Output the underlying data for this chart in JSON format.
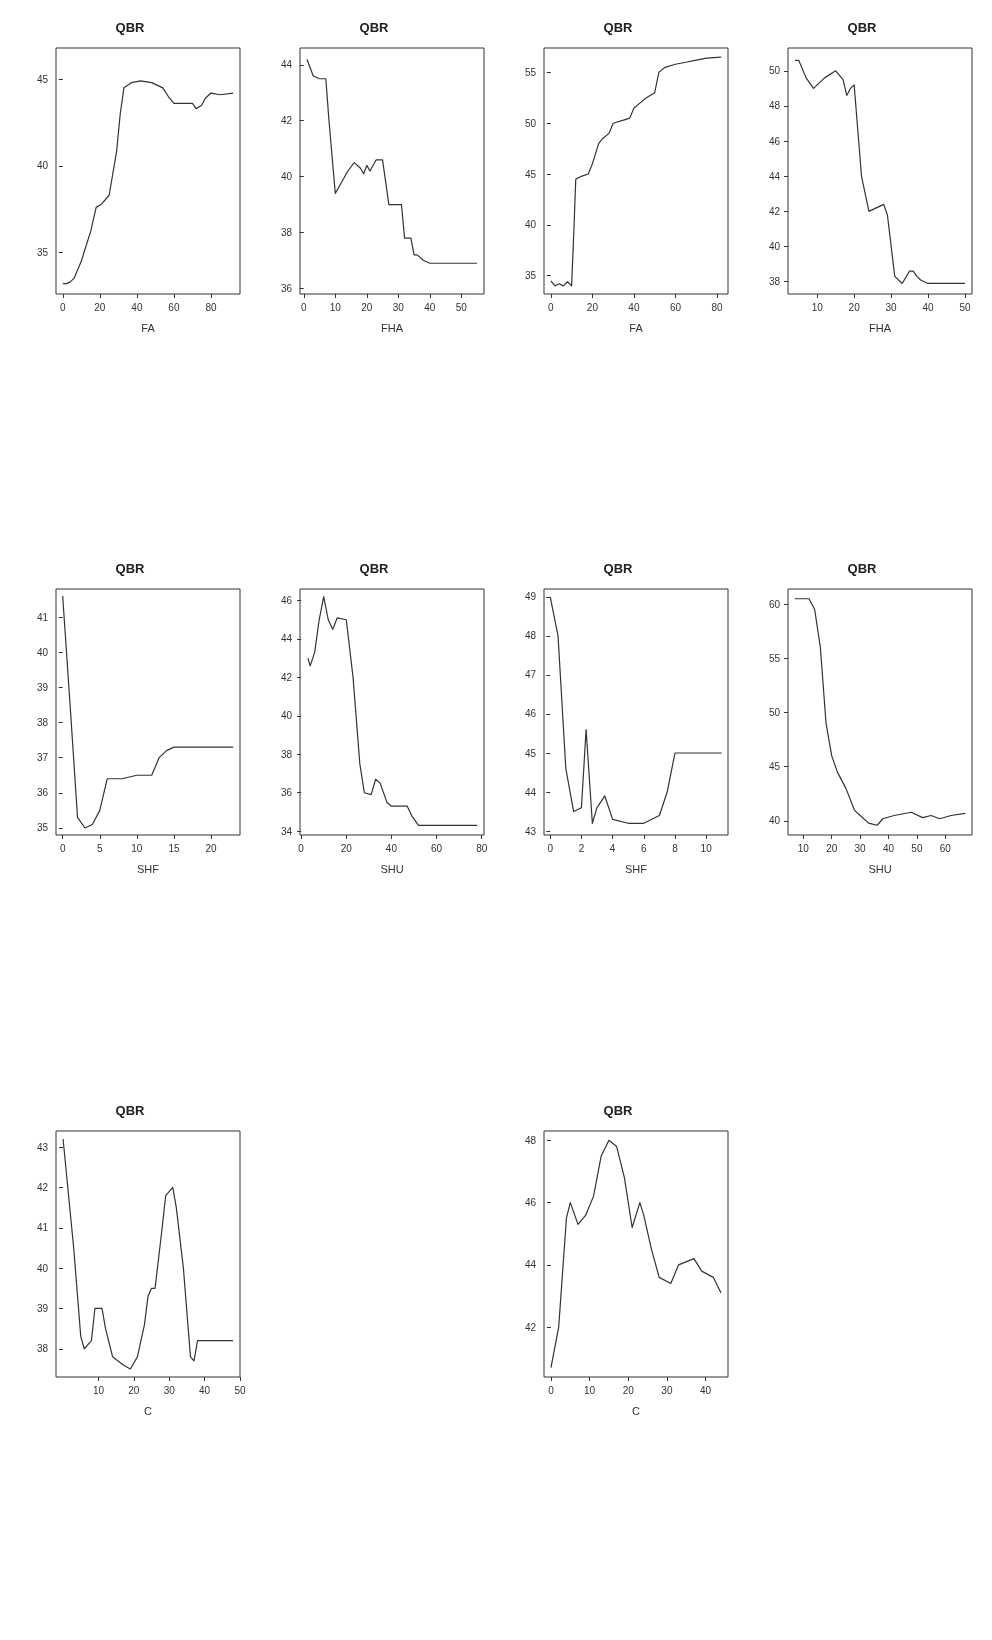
{
  "chart_data": [
    {
      "type": "line",
      "title": "QBR",
      "xlabel": "FA",
      "color": "#333333",
      "xlim": [
        -3.7,
        95.7
      ],
      "xticks": [
        0,
        20,
        40,
        60,
        80
      ],
      "ylim": [
        32.6,
        46.8
      ],
      "yticks": [
        35,
        40,
        45
      ],
      "x": [
        0,
        2,
        4,
        6,
        8,
        10,
        12,
        15,
        18,
        21,
        25,
        29,
        31,
        33,
        37,
        42,
        48,
        54,
        57,
        60,
        65,
        70,
        72,
        75,
        77,
        80,
        85,
        92
      ],
      "values": [
        33.2,
        33.2,
        33.3,
        33.5,
        34,
        34.5,
        35.2,
        36.2,
        37.6,
        37.8,
        38.3,
        40.8,
        43,
        44.5,
        44.8,
        44.9,
        44.8,
        44.5,
        44,
        43.6,
        43.6,
        43.6,
        43.3,
        43.5,
        43.9,
        44.2,
        44.1,
        44.2
      ]
    },
    {
      "type": "line",
      "title": "QBR",
      "xlabel": "FHA",
      "color": "#333333",
      "xlim": [
        -1.2,
        57.2
      ],
      "xticks": [
        0,
        10,
        20,
        30,
        40,
        50
      ],
      "ylim": [
        35.8,
        44.6
      ],
      "yticks": [
        36,
        38,
        40,
        42,
        44
      ],
      "x": [
        1,
        3,
        5,
        7,
        8,
        10,
        12,
        14,
        16,
        18,
        19,
        20,
        21,
        23,
        25,
        26,
        27,
        31,
        32,
        34,
        35,
        36,
        38,
        40,
        45,
        55
      ],
      "values": [
        44.2,
        43.6,
        43.5,
        43.5,
        42,
        39.4,
        39.8,
        40.2,
        40.5,
        40.3,
        40.1,
        40.4,
        40.2,
        40.6,
        40.6,
        39.8,
        39,
        39,
        37.8,
        37.8,
        37.2,
        37.2,
        37,
        36.9,
        36.9,
        36.9
      ]
    },
    {
      "type": "line",
      "title": "QBR",
      "xlabel": "FA",
      "color": "#333333",
      "xlim": [
        -3.3,
        85.3
      ],
      "xticks": [
        0,
        20,
        40,
        60,
        80
      ],
      "ylim": [
        33.2,
        57.4
      ],
      "yticks": [
        35,
        40,
        45,
        50,
        55
      ],
      "x": [
        0,
        2,
        4,
        6,
        8,
        10,
        11,
        12,
        15,
        18,
        20,
        23,
        25,
        28,
        30,
        35,
        38,
        40,
        43,
        46,
        50,
        52,
        55,
        60,
        65,
        70,
        75,
        82
      ],
      "values": [
        34.5,
        34,
        34.2,
        34,
        34.4,
        34,
        39,
        44.5,
        44.8,
        45,
        46,
        48,
        48.5,
        49,
        50,
        50.3,
        50.5,
        51.5,
        52,
        52.5,
        53,
        55,
        55.5,
        55.8,
        56,
        56.2,
        56.4,
        56.5
      ]
    },
    {
      "type": "line",
      "title": "QBR",
      "xlabel": "FHA",
      "color": "#333333",
      "xlim": [
        2.1,
        51.9
      ],
      "xticks": [
        10,
        20,
        30,
        40,
        50
      ],
      "ylim": [
        37.3,
        51.3
      ],
      "yticks": [
        38,
        40,
        42,
        44,
        46,
        48,
        50
      ],
      "x": [
        4,
        5,
        7,
        9,
        12,
        15,
        17,
        18,
        19,
        20,
        22,
        24,
        26,
        28,
        29,
        31,
        33,
        35,
        36,
        37,
        38,
        40,
        45,
        50
      ],
      "values": [
        50.6,
        50.6,
        49.6,
        49,
        49.6,
        50,
        49.5,
        48.6,
        49,
        49.2,
        44,
        42,
        42.2,
        42.4,
        41.8,
        38.3,
        37.9,
        38.6,
        38.6,
        38.3,
        38.1,
        37.9,
        37.9,
        37.9
      ]
    },
    {
      "type": "line",
      "title": "QBR",
      "xlabel": "SHF",
      "color": "#333333",
      "xlim": [
        -0.9,
        23.9
      ],
      "xticks": [
        0,
        5,
        10,
        15,
        20
      ],
      "ylim": [
        34.8,
        41.8
      ],
      "yticks": [
        35,
        36,
        37,
        38,
        39,
        40,
        41
      ],
      "x": [
        0,
        1,
        2,
        3,
        4,
        5,
        6,
        8,
        10,
        12,
        13,
        14,
        15,
        16,
        18,
        20,
        23
      ],
      "values": [
        41.6,
        38.5,
        35.3,
        35,
        35.1,
        35.5,
        36.4,
        36.4,
        36.5,
        36.5,
        37,
        37.2,
        37.3,
        37.3,
        37.3,
        37.3,
        37.3
      ]
    },
    {
      "type": "line",
      "title": "QBR",
      "xlabel": "SHU",
      "color": "#333333",
      "xlim": [
        -0.5,
        81
      ],
      "xticks": [
        0,
        20,
        40,
        60,
        80
      ],
      "ylim": [
        33.8,
        46.6
      ],
      "yticks": [
        34,
        36,
        38,
        40,
        42,
        44,
        46
      ],
      "x": [
        3,
        4,
        6,
        8,
        10,
        12,
        14,
        16,
        20,
        23,
        26,
        28,
        31,
        33,
        35,
        38,
        40,
        47,
        49,
        52,
        60,
        70,
        78
      ],
      "values": [
        43,
        42.6,
        43.3,
        45,
        46.2,
        45,
        44.5,
        45.1,
        45,
        42,
        37.5,
        36,
        35.9,
        36.7,
        36.5,
        35.5,
        35.3,
        35.3,
        34.8,
        34.3,
        34.3,
        34.3,
        34.3
      ]
    },
    {
      "type": "line",
      "title": "QBR",
      "xlabel": "SHF",
      "color": "#333333",
      "xlim": [
        -0.4,
        11.4
      ],
      "xticks": [
        0,
        2,
        4,
        6,
        8,
        10
      ],
      "ylim": [
        42.9,
        49.2
      ],
      "yticks": [
        43,
        44,
        45,
        46,
        47,
        48,
        49
      ],
      "x": [
        0,
        0.5,
        1,
        1.5,
        2,
        2.3,
        2.7,
        3,
        3.5,
        4,
        5,
        6,
        7,
        7.5,
        8,
        9,
        10,
        11
      ],
      "values": [
        49,
        48,
        44.6,
        43.5,
        43.6,
        45.6,
        43.2,
        43.6,
        43.9,
        43.3,
        43.2,
        43.2,
        43.4,
        44,
        45,
        45,
        45,
        45
      ]
    },
    {
      "type": "line",
      "title": "QBR",
      "xlabel": "SHU",
      "color": "#333333",
      "xlim": [
        4.6,
        69.4
      ],
      "xticks": [
        10,
        20,
        30,
        40,
        50,
        60
      ],
      "ylim": [
        38.7,
        61.4
      ],
      "yticks": [
        40,
        45,
        50,
        55,
        60
      ],
      "x": [
        7,
        12,
        14,
        16,
        18,
        20,
        22,
        25,
        28,
        30,
        33,
        36,
        38,
        42,
        48,
        52,
        55,
        58,
        62,
        67
      ],
      "values": [
        60.5,
        60.5,
        59.5,
        56,
        49,
        46,
        44.5,
        43,
        41,
        40.5,
        39.8,
        39.6,
        40.2,
        40.5,
        40.8,
        40.3,
        40.5,
        40.2,
        40.5,
        40.7
      ]
    },
    {
      "type": "line",
      "title": "QBR",
      "xlabel": "C",
      "color": "#333333",
      "xlim": [
        -2,
        50
      ],
      "xticks": [
        10,
        20,
        30,
        40,
        50
      ],
      "ylim": [
        37.3,
        43.4
      ],
      "yticks": [
        38,
        39,
        40,
        41,
        42,
        43
      ],
      "x": [
        0,
        3,
        5,
        6,
        8,
        9,
        11,
        12,
        14,
        17,
        19,
        21,
        23,
        24,
        25,
        26,
        28,
        29,
        31,
        32,
        34,
        36,
        37,
        38,
        48
      ],
      "values": [
        43.2,
        40.5,
        38.3,
        38,
        38.2,
        39,
        39,
        38.5,
        37.8,
        37.6,
        37.5,
        37.8,
        38.6,
        39.3,
        39.5,
        39.5,
        41,
        41.8,
        42,
        41.5,
        40,
        37.8,
        37.7,
        38.2,
        38.2
      ]
    },
    {
      "type": "line",
      "title": "QBR",
      "xlabel": "C",
      "color": "#333333",
      "xlim": [
        -1.8,
        45.8
      ],
      "xticks": [
        0,
        10,
        20,
        30,
        40
      ],
      "ylim": [
        40.4,
        48.3
      ],
      "yticks": [
        42,
        44,
        46,
        48
      ],
      "x": [
        0,
        2,
        4,
        5,
        7,
        9,
        11,
        13,
        15,
        17,
        19,
        21,
        23,
        24,
        26,
        28,
        31,
        33,
        37,
        39,
        42,
        44
      ],
      "values": [
        40.7,
        42,
        45.5,
        46,
        45.3,
        45.6,
        46.2,
        47.5,
        48,
        47.8,
        46.8,
        45.2,
        46,
        45.6,
        44.5,
        43.6,
        43.4,
        44,
        44.2,
        43.8,
        43.6,
        43.1
      ]
    }
  ]
}
